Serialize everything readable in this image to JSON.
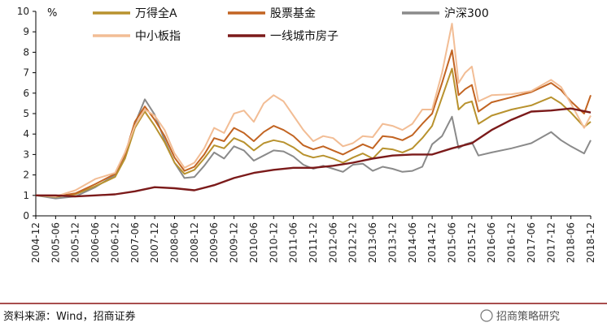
{
  "chart_data": {
    "type": "line",
    "unit_label": "%",
    "ylim": [
      0,
      10
    ],
    "yticks": [
      0,
      1,
      2,
      3,
      4,
      5,
      6,
      7,
      8,
      9,
      10
    ],
    "x_start": "2004-12",
    "x_end": "2018-12",
    "xticks": [
      "2004-12",
      "2005-06",
      "2005-12",
      "2006-06",
      "2006-12",
      "2007-06",
      "2007-12",
      "2008-06",
      "2008-12",
      "2009-06",
      "2009-12",
      "2010-06",
      "2010-12",
      "2011-06",
      "2011-12",
      "2012-06",
      "2012-12",
      "2013-06",
      "2013-12",
      "2014-06",
      "2014-12",
      "2015-06",
      "2015-12",
      "2016-06",
      "2016-12",
      "2017-06",
      "2017-12",
      "2018-06",
      "2018-12"
    ],
    "legend_placement": "top",
    "grid": false,
    "series": [
      {
        "name": "万得全A",
        "color": "#b8922e",
        "points": [
          [
            "2004-12",
            1.0
          ],
          [
            "2005-06",
            0.93
          ],
          [
            "2005-12",
            1.05
          ],
          [
            "2006-06",
            1.45
          ],
          [
            "2006-12",
            1.9
          ],
          [
            "2007-03",
            2.8
          ],
          [
            "2007-06",
            4.3
          ],
          [
            "2007-09",
            5.1
          ],
          [
            "2007-12",
            4.4
          ],
          [
            "2008-03",
            3.6
          ],
          [
            "2008-06",
            2.6
          ],
          [
            "2008-09",
            2.05
          ],
          [
            "2008-12",
            2.25
          ],
          [
            "2009-03",
            2.8
          ],
          [
            "2009-06",
            3.45
          ],
          [
            "2009-09",
            3.3
          ],
          [
            "2009-12",
            3.8
          ],
          [
            "2010-03",
            3.6
          ],
          [
            "2010-06",
            3.2
          ],
          [
            "2010-09",
            3.55
          ],
          [
            "2010-12",
            3.7
          ],
          [
            "2011-03",
            3.6
          ],
          [
            "2011-06",
            3.35
          ],
          [
            "2011-09",
            3.0
          ],
          [
            "2011-12",
            2.85
          ],
          [
            "2012-03",
            2.95
          ],
          [
            "2012-06",
            2.8
          ],
          [
            "2012-09",
            2.6
          ],
          [
            "2012-12",
            2.85
          ],
          [
            "2013-03",
            3.05
          ],
          [
            "2013-06",
            2.8
          ],
          [
            "2013-09",
            3.3
          ],
          [
            "2013-12",
            3.25
          ],
          [
            "2014-03",
            3.1
          ],
          [
            "2014-06",
            3.3
          ],
          [
            "2014-09",
            3.8
          ],
          [
            "2014-12",
            4.4
          ],
          [
            "2015-03",
            5.8
          ],
          [
            "2015-06",
            7.2
          ],
          [
            "2015-08",
            5.2
          ],
          [
            "2015-10",
            5.5
          ],
          [
            "2015-12",
            5.6
          ],
          [
            "2016-02",
            4.5
          ],
          [
            "2016-06",
            4.9
          ],
          [
            "2016-12",
            5.2
          ],
          [
            "2017-06",
            5.4
          ],
          [
            "2017-12",
            5.8
          ],
          [
            "2018-03",
            5.5
          ],
          [
            "2018-06",
            5.05
          ],
          [
            "2018-10",
            4.35
          ],
          [
            "2018-12",
            4.6
          ]
        ]
      },
      {
        "name": "股票基金",
        "color": "#c26422",
        "points": [
          [
            "2004-12",
            1.0
          ],
          [
            "2005-06",
            0.95
          ],
          [
            "2005-12",
            1.1
          ],
          [
            "2006-06",
            1.55
          ],
          [
            "2006-12",
            2.05
          ],
          [
            "2007-03",
            3.0
          ],
          [
            "2007-06",
            4.6
          ],
          [
            "2007-09",
            5.35
          ],
          [
            "2007-12",
            4.7
          ],
          [
            "2008-03",
            3.9
          ],
          [
            "2008-06",
            2.85
          ],
          [
            "2008-09",
            2.2
          ],
          [
            "2008-12",
            2.4
          ],
          [
            "2009-03",
            3.0
          ],
          [
            "2009-06",
            3.8
          ],
          [
            "2009-09",
            3.65
          ],
          [
            "2009-12",
            4.3
          ],
          [
            "2010-03",
            4.05
          ],
          [
            "2010-06",
            3.65
          ],
          [
            "2010-09",
            4.1
          ],
          [
            "2010-12",
            4.4
          ],
          [
            "2011-03",
            4.2
          ],
          [
            "2011-06",
            3.9
          ],
          [
            "2011-09",
            3.45
          ],
          [
            "2011-12",
            3.25
          ],
          [
            "2012-03",
            3.4
          ],
          [
            "2012-06",
            3.2
          ],
          [
            "2012-09",
            3.0
          ],
          [
            "2012-12",
            3.25
          ],
          [
            "2013-03",
            3.5
          ],
          [
            "2013-06",
            3.3
          ],
          [
            "2013-09",
            3.9
          ],
          [
            "2013-12",
            3.85
          ],
          [
            "2014-03",
            3.7
          ],
          [
            "2014-06",
            3.95
          ],
          [
            "2014-09",
            4.5
          ],
          [
            "2014-12",
            5.0
          ],
          [
            "2015-03",
            6.5
          ],
          [
            "2015-06",
            8.1
          ],
          [
            "2015-08",
            5.9
          ],
          [
            "2015-10",
            6.2
          ],
          [
            "2015-12",
            6.4
          ],
          [
            "2016-02",
            5.1
          ],
          [
            "2016-06",
            5.55
          ],
          [
            "2016-12",
            5.8
          ],
          [
            "2017-06",
            6.05
          ],
          [
            "2017-12",
            6.5
          ],
          [
            "2018-03",
            6.15
          ],
          [
            "2018-06",
            5.6
          ],
          [
            "2018-10",
            5.0
          ],
          [
            "2018-12",
            5.9
          ]
        ]
      },
      {
        "name": "沪深300",
        "color": "#8a8a8a",
        "points": [
          [
            "2004-12",
            1.0
          ],
          [
            "2005-06",
            0.85
          ],
          [
            "2005-12",
            0.95
          ],
          [
            "2006-06",
            1.4
          ],
          [
            "2006-12",
            2.0
          ],
          [
            "2007-03",
            2.9
          ],
          [
            "2007-06",
            4.5
          ],
          [
            "2007-09",
            5.7
          ],
          [
            "2007-12",
            4.95
          ],
          [
            "2008-03",
            3.7
          ],
          [
            "2008-06",
            2.6
          ],
          [
            "2008-09",
            1.85
          ],
          [
            "2008-12",
            1.9
          ],
          [
            "2009-03",
            2.45
          ],
          [
            "2009-06",
            3.1
          ],
          [
            "2009-09",
            2.8
          ],
          [
            "2009-12",
            3.4
          ],
          [
            "2010-03",
            3.2
          ],
          [
            "2010-06",
            2.7
          ],
          [
            "2010-09",
            2.95
          ],
          [
            "2010-12",
            3.2
          ],
          [
            "2011-03",
            3.15
          ],
          [
            "2011-06",
            2.9
          ],
          [
            "2011-09",
            2.5
          ],
          [
            "2011-12",
            2.3
          ],
          [
            "2012-03",
            2.45
          ],
          [
            "2012-06",
            2.3
          ],
          [
            "2012-09",
            2.15
          ],
          [
            "2012-12",
            2.5
          ],
          [
            "2013-03",
            2.55
          ],
          [
            "2013-06",
            2.2
          ],
          [
            "2013-09",
            2.4
          ],
          [
            "2013-12",
            2.3
          ],
          [
            "2014-03",
            2.15
          ],
          [
            "2014-06",
            2.2
          ],
          [
            "2014-09",
            2.4
          ],
          [
            "2014-12",
            3.5
          ],
          [
            "2015-03",
            3.9
          ],
          [
            "2015-06",
            4.85
          ],
          [
            "2015-08",
            3.3
          ],
          [
            "2015-10",
            3.5
          ],
          [
            "2015-12",
            3.6
          ],
          [
            "2016-02",
            2.95
          ],
          [
            "2016-06",
            3.1
          ],
          [
            "2016-12",
            3.3
          ],
          [
            "2017-06",
            3.55
          ],
          [
            "2017-12",
            4.1
          ],
          [
            "2018-03",
            3.7
          ],
          [
            "2018-06",
            3.4
          ],
          [
            "2018-10",
            3.05
          ],
          [
            "2018-12",
            3.7
          ]
        ]
      },
      {
        "name": "中小板指",
        "color": "#f2bd95",
        "points": [
          [
            "2004-12",
            1.0
          ],
          [
            "2005-06",
            0.95
          ],
          [
            "2005-12",
            1.25
          ],
          [
            "2006-06",
            1.8
          ],
          [
            "2006-12",
            2.1
          ],
          [
            "2007-03",
            3.1
          ],
          [
            "2007-06",
            4.4
          ],
          [
            "2007-09",
            5.2
          ],
          [
            "2007-12",
            4.9
          ],
          [
            "2008-03",
            4.2
          ],
          [
            "2008-06",
            3.05
          ],
          [
            "2008-09",
            2.35
          ],
          [
            "2008-12",
            2.6
          ],
          [
            "2009-03",
            3.3
          ],
          [
            "2009-06",
            4.3
          ],
          [
            "2009-09",
            4.05
          ],
          [
            "2009-12",
            5.0
          ],
          [
            "2010-03",
            5.15
          ],
          [
            "2010-06",
            4.6
          ],
          [
            "2010-09",
            5.5
          ],
          [
            "2010-12",
            5.9
          ],
          [
            "2011-03",
            5.6
          ],
          [
            "2011-06",
            4.9
          ],
          [
            "2011-09",
            4.2
          ],
          [
            "2011-12",
            3.65
          ],
          [
            "2012-03",
            3.9
          ],
          [
            "2012-06",
            3.8
          ],
          [
            "2012-09",
            3.4
          ],
          [
            "2012-12",
            3.55
          ],
          [
            "2013-03",
            3.9
          ],
          [
            "2013-06",
            3.85
          ],
          [
            "2013-09",
            4.5
          ],
          [
            "2013-12",
            4.4
          ],
          [
            "2014-03",
            4.2
          ],
          [
            "2014-06",
            4.5
          ],
          [
            "2014-09",
            5.2
          ],
          [
            "2014-12",
            5.2
          ],
          [
            "2015-03",
            7.0
          ],
          [
            "2015-06",
            9.4
          ],
          [
            "2015-08",
            6.5
          ],
          [
            "2015-10",
            7.0
          ],
          [
            "2015-12",
            7.3
          ],
          [
            "2016-02",
            5.6
          ],
          [
            "2016-06",
            5.9
          ],
          [
            "2016-12",
            5.95
          ],
          [
            "2017-06",
            6.1
          ],
          [
            "2017-12",
            6.65
          ],
          [
            "2018-03",
            6.3
          ],
          [
            "2018-06",
            5.5
          ],
          [
            "2018-10",
            4.3
          ],
          [
            "2018-12",
            4.9
          ]
        ]
      },
      {
        "name": "一线城市房子",
        "color": "#7b1a1a",
        "points": [
          [
            "2004-12",
            1.0
          ],
          [
            "2005-06",
            1.0
          ],
          [
            "2005-12",
            0.95
          ],
          [
            "2006-06",
            1.0
          ],
          [
            "2006-12",
            1.05
          ],
          [
            "2007-06",
            1.2
          ],
          [
            "2007-12",
            1.4
          ],
          [
            "2008-06",
            1.35
          ],
          [
            "2008-12",
            1.25
          ],
          [
            "2009-06",
            1.5
          ],
          [
            "2009-12",
            1.85
          ],
          [
            "2010-06",
            2.1
          ],
          [
            "2010-12",
            2.25
          ],
          [
            "2011-06",
            2.35
          ],
          [
            "2011-12",
            2.35
          ],
          [
            "2012-06",
            2.45
          ],
          [
            "2012-12",
            2.6
          ],
          [
            "2013-06",
            2.8
          ],
          [
            "2013-12",
            2.95
          ],
          [
            "2014-06",
            3.0
          ],
          [
            "2014-12",
            3.0
          ],
          [
            "2015-06",
            3.3
          ],
          [
            "2015-12",
            3.55
          ],
          [
            "2016-06",
            4.2
          ],
          [
            "2016-12",
            4.7
          ],
          [
            "2017-06",
            5.1
          ],
          [
            "2017-12",
            5.15
          ],
          [
            "2018-06",
            5.25
          ],
          [
            "2018-12",
            5.05
          ]
        ]
      }
    ]
  },
  "source": "资料来源：Wind，招商证券",
  "brand": "招商策略研究"
}
